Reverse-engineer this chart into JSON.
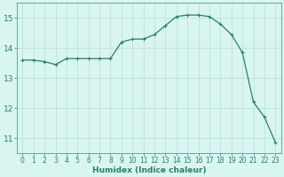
{
  "x": [
    0,
    1,
    2,
    3,
    4,
    5,
    6,
    7,
    8,
    9,
    10,
    11,
    12,
    13,
    14,
    15,
    16,
    17,
    18,
    19,
    20,
    21,
    22,
    23
  ],
  "y": [
    13.6,
    13.6,
    13.55,
    13.45,
    13.65,
    13.65,
    13.65,
    13.65,
    13.65,
    14.2,
    14.3,
    14.3,
    14.45,
    14.75,
    15.05,
    15.1,
    15.1,
    15.05,
    14.8,
    14.45,
    13.85,
    12.2,
    11.7,
    10.85
  ],
  "line_color": "#2d7d6e",
  "marker": "+",
  "marker_size": 3,
  "marker_lw": 0.8,
  "line_width": 0.9,
  "bg_color": "#d8f5f0",
  "grid_color": "#b8ddd8",
  "axis_color": "#5a9a90",
  "tick_color": "#2d7d6e",
  "xlabel": "Humidex (Indice chaleur)",
  "xlabel_color": "#2d7d6e",
  "ylim": [
    10.5,
    15.5
  ],
  "xlim": [
    -0.5,
    23.5
  ],
  "yticks": [
    11,
    12,
    13,
    14,
    15
  ],
  "xticks": [
    0,
    1,
    2,
    3,
    4,
    5,
    6,
    7,
    8,
    9,
    10,
    11,
    12,
    13,
    14,
    15,
    16,
    17,
    18,
    19,
    20,
    21,
    22,
    23
  ],
  "ytick_fontsize": 6.5,
  "xtick_fontsize": 5.5,
  "xlabel_fontsize": 6.5
}
